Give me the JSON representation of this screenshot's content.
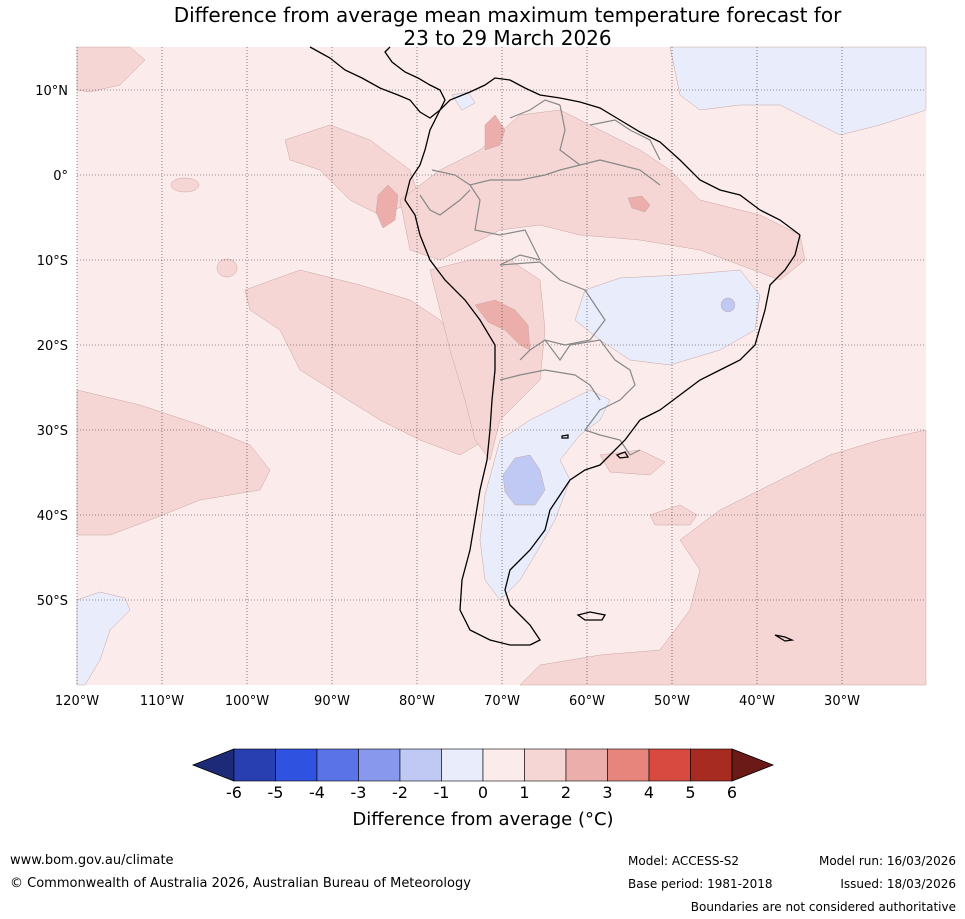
{
  "title": {
    "line1": "Difference from average mean maximum temperature forecast for",
    "line2": "23 to 29 March 2026"
  },
  "map": {
    "lat_labels": [
      "10°N",
      "0°",
      "10°S",
      "20°S",
      "30°S",
      "40°S",
      "50°S"
    ],
    "lon_labels": [
      "120°W",
      "110°W",
      "100°W",
      "90°W",
      "80°W",
      "70°W",
      "60°W",
      "50°W",
      "40°W",
      "30°W"
    ],
    "ocean_color": "#fbebea"
  },
  "colorbar": {
    "title": "Difference from average (°C)",
    "ticks": [
      "-6",
      "-5",
      "-4",
      "-3",
      "-2",
      "-1",
      "0",
      "1",
      "2",
      "3",
      "4",
      "5",
      "6"
    ],
    "colors": [
      "#1c2a78",
      "#283fb2",
      "#2f52e0",
      "#5a73e6",
      "#8898ec",
      "#c0c8f4",
      "#e8ecfb",
      "#fbebea",
      "#f6d6d4",
      "#ebaeaa",
      "#e7847c",
      "#d84a3f",
      "#a82b22",
      "#6b1a18"
    ]
  },
  "footer": {
    "website": "www.bom.gov.au/climate",
    "copyright": "© Commonwealth of Australia 2026, Australian Bureau of Meteorology",
    "model": "Model: ACCESS-S2",
    "base_period": "Base period: 1981-2018",
    "model_run": "Model run: 16/03/2026",
    "issued": "Issued: 18/03/2026",
    "disclaimer": "Boundaries are not considered authoritative"
  }
}
